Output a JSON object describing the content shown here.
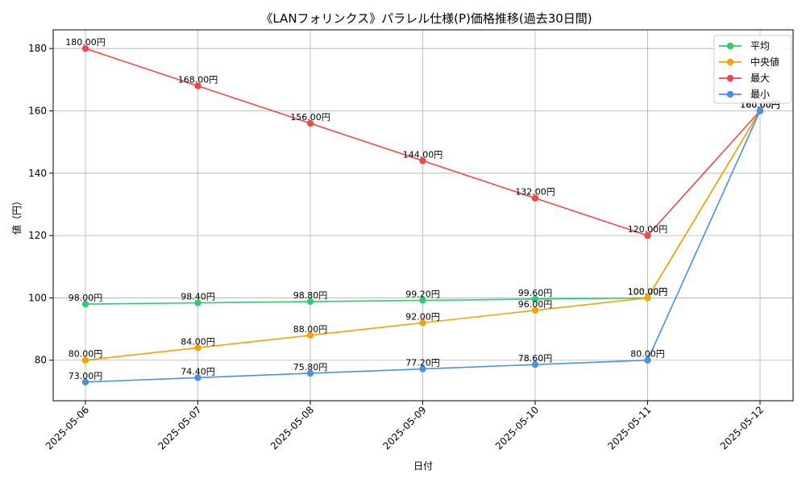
{
  "chart_data": {
    "type": "line",
    "title": "《LANフォリンクス》パラレル仕様(P)価格推移(過去30日間)",
    "xlabel": "日付",
    "ylabel": "値（円）",
    "categories": [
      "2025-05-06",
      "2025-05-07",
      "2025-05-08",
      "2025-05-09",
      "2025-05-10",
      "2025-05-11",
      "2025-05-12"
    ],
    "yticks": [
      80,
      100,
      120,
      140,
      160,
      180
    ],
    "ylim": [
      67,
      186
    ],
    "grid": true,
    "legend": "top-right",
    "value_suffix": "円",
    "series": [
      {
        "name": "平均",
        "color": "#2ecc71",
        "values": [
          98.0,
          98.4,
          98.8,
          99.2,
          99.6,
          100.0,
          160.0
        ]
      },
      {
        "name": "中央値",
        "color": "#f5a300",
        "values": [
          80.0,
          84.0,
          88.0,
          92.0,
          96.0,
          100.0,
          160.0
        ]
      },
      {
        "name": "最大",
        "color": "#f04848",
        "values": [
          180.0,
          168.0,
          156.0,
          144.0,
          132.0,
          120.0,
          160.0
        ]
      },
      {
        "name": "最小",
        "color": "#4a90e2",
        "values": [
          73.0,
          74.4,
          75.8,
          77.2,
          78.6,
          80.0,
          160.0
        ]
      }
    ]
  }
}
